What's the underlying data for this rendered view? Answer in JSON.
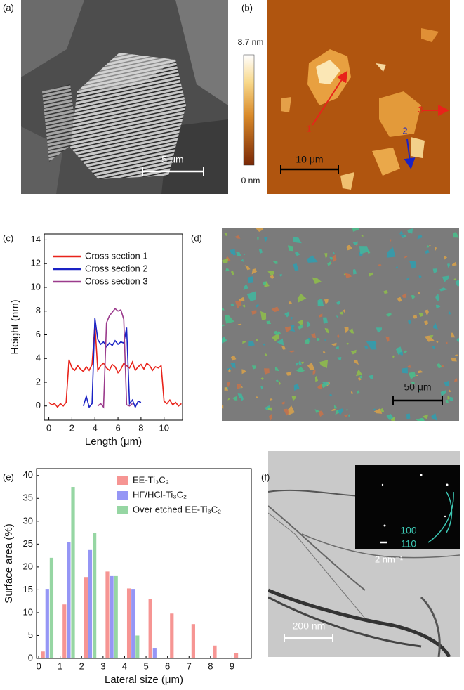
{
  "panels": {
    "a": {
      "label": "(a)",
      "scale_bar": "5 μm"
    },
    "b": {
      "label": "(b)",
      "colorbar_max": "8.7 nm",
      "colorbar_min": "0 nm",
      "scale_bar": "10 μm",
      "markers": [
        "1",
        "2",
        "3"
      ]
    },
    "c": {
      "label": "(c)"
    },
    "d": {
      "label": "(d)",
      "scale_bar": "50 μm"
    },
    "e": {
      "label": "(e)"
    },
    "f": {
      "label": "(f)",
      "scale_bar": "200 nm",
      "inset_scale": "2 nm⁻¹",
      "rings": [
        "100",
        "110"
      ]
    }
  },
  "chart_data": [
    {
      "type": "line",
      "x_label": "Length (μm)",
      "y_label": "Height (nm)",
      "x": [
        0,
        0.25,
        0.5,
        0.75,
        1,
        1.25,
        1.5,
        1.75,
        2,
        2.25,
        2.5,
        2.75,
        3,
        3.25,
        3.5,
        3.75,
        4,
        4.25,
        4.5,
        4.75,
        5,
        5.25,
        5.5,
        5.75,
        6,
        6.25,
        6.5,
        6.75,
        7,
        7.25,
        7.5,
        7.75,
        8,
        8.25,
        8.5,
        8.75,
        9,
        9.25,
        9.5,
        9.75,
        10,
        10.25,
        10.5,
        10.75,
        11,
        11.25,
        11.5
      ],
      "series": [
        {
          "name": "Cross section 1",
          "color": "#e8231a",
          "values": [
            0.3,
            0.1,
            0.2,
            -0.1,
            0.2,
            0.0,
            0.3,
            3.9,
            3.2,
            3.0,
            3.4,
            3.1,
            2.9,
            3.3,
            3.0,
            3.5,
            6.9,
            3.0,
            3.4,
            3.6,
            3.2,
            3.0,
            3.5,
            3.3,
            2.8,
            3.1,
            3.6,
            3.4,
            3.2,
            3.7,
            3.0,
            3.3,
            3.5,
            3.1,
            3.6,
            3.4,
            3.0,
            3.3,
            3.2,
            3.4,
            0.4,
            0.2,
            0.5,
            0.1,
            0.3,
            0.0,
            0.2
          ]
        },
        {
          "name": "Cross section 2",
          "color": "#1a22c4",
          "values": [
            null,
            null,
            null,
            null,
            null,
            null,
            null,
            null,
            null,
            null,
            null,
            null,
            0.0,
            0.8,
            -0.1,
            0.2,
            7.4,
            5.6,
            5.2,
            5.4,
            5.0,
            5.3,
            5.1,
            5.5,
            5.2,
            5.4,
            5.3,
            6.6,
            0.2,
            0.5,
            -0.1,
            0.4,
            0.3,
            null,
            null,
            null,
            null,
            null,
            null,
            null,
            null,
            null,
            null,
            null,
            null,
            null,
            null
          ]
        },
        {
          "name": "Cross section 3",
          "color": "#9b3b8c",
          "values": [
            null,
            null,
            null,
            null,
            null,
            null,
            null,
            null,
            null,
            null,
            null,
            null,
            null,
            null,
            null,
            null,
            null,
            0.0,
            0.2,
            -0.1,
            7.0,
            7.6,
            7.9,
            8.2,
            8.0,
            8.1,
            7.3,
            0.1,
            0.0,
            0.2,
            null,
            null,
            null,
            null,
            null,
            null,
            null,
            null,
            null,
            null,
            null,
            null,
            null,
            null,
            null,
            null,
            null
          ]
        }
      ],
      "xlim": [
        -0.4,
        11.6
      ],
      "xticks": [
        0,
        2,
        4,
        6,
        8,
        10
      ],
      "ylim": [
        -1.2,
        14.5
      ],
      "yticks": [
        0,
        2,
        4,
        6,
        8,
        10,
        12,
        14
      ]
    },
    {
      "type": "bar",
      "x_label": "Lateral size (μm)",
      "y_label": "Surface area (%)",
      "x": [
        0.4,
        1.4,
        2.4,
        3.4,
        4.4,
        5.4,
        6.4,
        7.4,
        8.4,
        9.4
      ],
      "series": [
        {
          "name": "EE-Ti₃C₂",
          "color": "#f47a78",
          "values": [
            1.5,
            11.8,
            17.8,
            19.0,
            15.3,
            13.0,
            9.8,
            7.5,
            2.8,
            1.2
          ]
        },
        {
          "name": "HF/HCl-Ti₃C₂",
          "color": "#7b7cf2",
          "values": [
            15.2,
            25.5,
            23.7,
            18.0,
            15.2,
            2.3,
            null,
            null,
            null,
            null
          ]
        },
        {
          "name": "Over etched EE-Ti₃C₂",
          "color": "#7ccc8c",
          "values": [
            22.0,
            37.5,
            27.5,
            18.0,
            5.0,
            null,
            null,
            null,
            null,
            null
          ]
        }
      ],
      "xlim": [
        -0.1,
        9.9
      ],
      "xticks": [
        0,
        1,
        2,
        3,
        4,
        5,
        6,
        7,
        8,
        9
      ],
      "ylim": [
        0,
        41.5
      ],
      "yticks": [
        0,
        5,
        10,
        15,
        20,
        25,
        30,
        35,
        40
      ]
    }
  ]
}
